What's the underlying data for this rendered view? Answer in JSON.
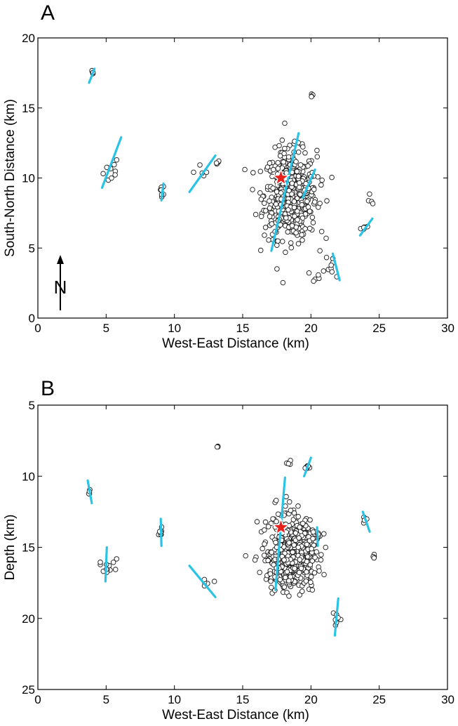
{
  "chart_data": [
    {
      "type": "scatter",
      "panel_label": "A",
      "xlabel": "West-East Distance (km)",
      "ylabel": "South-North Distance (km)",
      "xlim": [
        0,
        30
      ],
      "ylim": [
        0,
        20
      ],
      "xticks": [
        0,
        5,
        10,
        15,
        20,
        25,
        30
      ],
      "yticks": [
        0,
        5,
        10,
        15,
        20
      ],
      "north_arrow_label": "N",
      "mainshock": {
        "x": 17.8,
        "y": 10.0,
        "color": "#e8201c"
      },
      "clusters": [
        {
          "x": 4.0,
          "y": 17.5,
          "spread": [
            0.15,
            0.2
          ],
          "count": 5,
          "fill": "#222222"
        },
        {
          "x": 5.4,
          "y": 10.6,
          "spread": [
            0.5,
            0.9
          ],
          "count": 10,
          "fill": "#c9a36a"
        },
        {
          "x": 9.1,
          "y": 9.2,
          "spread": [
            0.15,
            0.35
          ],
          "count": 8,
          "fill": "#8d9a4a"
        },
        {
          "x": 12.0,
          "y": 10.2,
          "spread": [
            0.6,
            0.6
          ],
          "count": 5,
          "fill": "#ffffff"
        },
        {
          "x": 13.2,
          "y": 11.1,
          "spread": [
            0.12,
            0.12
          ],
          "count": 4,
          "fill": "#111111"
        },
        {
          "x": 20.1,
          "y": 15.9,
          "spread": [
            0.1,
            0.2
          ],
          "count": 4,
          "fill": "#2e8b57"
        },
        {
          "x": 24.4,
          "y": 8.4,
          "spread": [
            0.15,
            0.5
          ],
          "count": 4,
          "fill": "#2fa0a0"
        },
        {
          "x": 23.9,
          "y": 6.4,
          "spread": [
            0.25,
            0.15
          ],
          "count": 6,
          "fill": "#101050"
        },
        {
          "x": 21.7,
          "y": 3.8,
          "spread": [
            0.45,
            0.7
          ],
          "count": 8,
          "fill": "#ffffff"
        },
        {
          "x": 20.2,
          "y": 3.0,
          "spread": [
            0.8,
            0.4
          ],
          "count": 6,
          "fill": "#ffffff"
        },
        {
          "x": 18.5,
          "y": 8.8,
          "spread": [
            1.6,
            2.6
          ],
          "count": 520,
          "fill": "#ffffff"
        },
        {
          "x": 19.6,
          "y": 9.2,
          "spread": [
            0.25,
            0.4
          ],
          "count": 6,
          "fill": "#a02020"
        }
      ],
      "faults": [
        {
          "x1": 3.75,
          "y1": 16.8,
          "x2": 4.15,
          "y2": 17.8
        },
        {
          "x1": 4.7,
          "y1": 9.3,
          "x2": 6.1,
          "y2": 12.9
        },
        {
          "x1": 9.05,
          "y1": 8.4,
          "x2": 9.2,
          "y2": 9.6
        },
        {
          "x1": 11.1,
          "y1": 9.0,
          "x2": 13.0,
          "y2": 11.6
        },
        {
          "x1": 17.1,
          "y1": 4.8,
          "x2": 19.1,
          "y2": 13.2
        },
        {
          "x1": 19.4,
          "y1": 8.6,
          "x2": 20.3,
          "y2": 10.6
        },
        {
          "x1": 23.6,
          "y1": 5.9,
          "x2": 24.5,
          "y2": 7.1
        },
        {
          "x1": 21.6,
          "y1": 4.6,
          "x2": 22.1,
          "y2": 2.7
        }
      ]
    },
    {
      "type": "scatter",
      "panel_label": "B",
      "xlabel": "West-East Distance (km)",
      "ylabel": "Depth (km)",
      "xlim": [
        0,
        30
      ],
      "ylim": [
        25,
        5
      ],
      "xticks": [
        0,
        5,
        10,
        15,
        20,
        25,
        30
      ],
      "yticks": [
        5,
        10,
        15,
        20,
        25
      ],
      "mainshock": {
        "x": 17.8,
        "y": 13.6,
        "color": "#e8201c"
      },
      "clusters": [
        {
          "x": 3.75,
          "y": 11.0,
          "spread": [
            0.1,
            0.25
          ],
          "count": 4,
          "fill": "#222222"
        },
        {
          "x": 5.2,
          "y": 16.2,
          "spread": [
            0.5,
            0.7
          ],
          "count": 12,
          "fill": "#c9a36a"
        },
        {
          "x": 9.0,
          "y": 13.9,
          "spread": [
            0.15,
            0.3
          ],
          "count": 8,
          "fill": "#8d9a4a"
        },
        {
          "x": 12.3,
          "y": 17.5,
          "spread": [
            0.6,
            0.4
          ],
          "count": 5,
          "fill": "#ffffff"
        },
        {
          "x": 13.2,
          "y": 7.9,
          "spread": [
            0.1,
            0.08
          ],
          "count": 4,
          "fill": "#111111"
        },
        {
          "x": 19.7,
          "y": 9.4,
          "spread": [
            0.2,
            0.35
          ],
          "count": 8,
          "fill": "#a02020"
        },
        {
          "x": 18.4,
          "y": 9.0,
          "spread": [
            0.3,
            0.2
          ],
          "count": 4,
          "fill": "#ffffff"
        },
        {
          "x": 20.5,
          "y": 14.2,
          "spread": [
            0.15,
            0.5
          ],
          "count": 6,
          "fill": "#ffffff"
        },
        {
          "x": 23.9,
          "y": 13.1,
          "spread": [
            0.15,
            0.25
          ],
          "count": 5,
          "fill": "#101050"
        },
        {
          "x": 24.6,
          "y": 15.6,
          "spread": [
            0.1,
            0.3
          ],
          "count": 4,
          "fill": "#2fa0a0"
        },
        {
          "x": 21.9,
          "y": 20.2,
          "spread": [
            0.3,
            0.6
          ],
          "count": 7,
          "fill": "#ffffff"
        },
        {
          "x": 18.6,
          "y": 15.4,
          "spread": [
            1.5,
            2.1
          ],
          "count": 520,
          "fill": "#ffffff"
        }
      ],
      "faults": [
        {
          "x1": 3.65,
          "y1": 10.3,
          "x2": 3.95,
          "y2": 11.9
        },
        {
          "x1": 5.05,
          "y1": 15.0,
          "x2": 4.95,
          "y2": 17.4
        },
        {
          "x1": 9.0,
          "y1": 13.0,
          "x2": 9.05,
          "y2": 14.9
        },
        {
          "x1": 11.1,
          "y1": 16.3,
          "x2": 13.0,
          "y2": 18.5
        },
        {
          "x1": 17.4,
          "y1": 18.0,
          "x2": 18.1,
          "y2": 10.1
        },
        {
          "x1": 19.5,
          "y1": 10.0,
          "x2": 20.0,
          "y2": 8.7
        },
        {
          "x1": 20.45,
          "y1": 13.6,
          "x2": 20.5,
          "y2": 14.9
        },
        {
          "x1": 23.8,
          "y1": 12.5,
          "x2": 24.3,
          "y2": 13.9
        },
        {
          "x1": 21.75,
          "y1": 21.2,
          "x2": 22.0,
          "y2": 18.6
        }
      ]
    }
  ]
}
